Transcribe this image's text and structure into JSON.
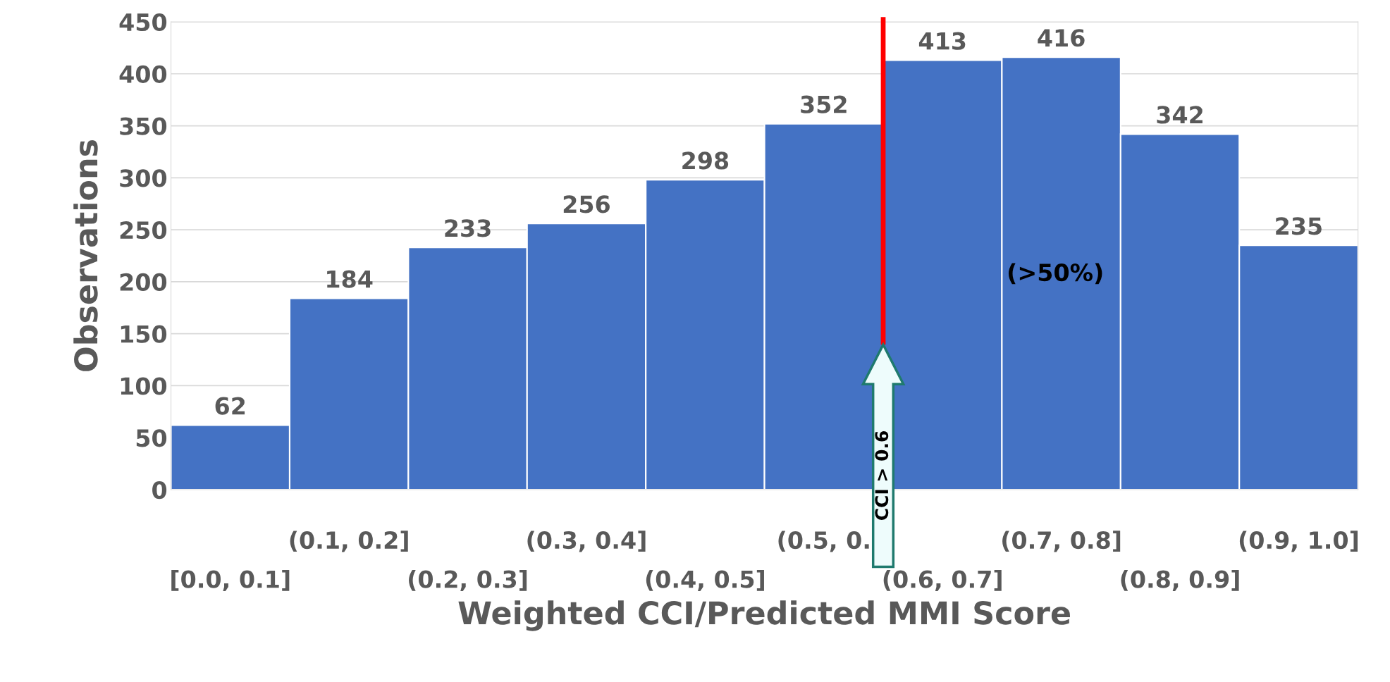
{
  "chart_data": {
    "type": "bar",
    "xlabel": "Weighted CCI/Predicted MMI Score",
    "ylabel": "Observations",
    "categories": [
      "[0.0, 0.1]",
      "(0.1, 0.2]",
      "(0.2, 0.3]",
      "(0.3, 0.4]",
      "(0.4, 0.5]",
      "(0.5, 0.",
      "(0.6, 0.7]",
      "(0.7, 0.8]",
      "(0.8, 0.9]",
      "(0.9, 1.0]"
    ],
    "values": [
      62,
      184,
      233,
      256,
      298,
      352,
      413,
      416,
      342,
      235
    ],
    "color": "#4472c4",
    "data_labels": true,
    "ylim": [
      0,
      450
    ],
    "yticks": [
      0,
      50,
      100,
      150,
      200,
      250,
      300,
      350,
      400,
      450
    ],
    "grid": "y",
    "annotations": [
      "CCI > 0.6",
      "(>50%)"
    ]
  }
}
